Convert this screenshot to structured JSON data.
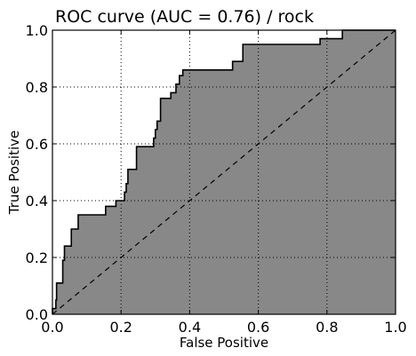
{
  "chart_data": {
    "type": "area",
    "title": "ROC curve (AUC = 0.76) / rock",
    "xlabel": "False Positive",
    "ylabel": "True Positive",
    "xlim": [
      0.0,
      1.0
    ],
    "ylim": [
      0.0,
      1.0
    ],
    "xticks": [
      "0.0",
      "0.2",
      "0.4",
      "0.6",
      "0.8",
      "1.0"
    ],
    "yticks": [
      "0.0",
      "0.2",
      "0.4",
      "0.6",
      "0.8",
      "1.0"
    ],
    "grid": true,
    "fill_color": "#888888",
    "series": [
      {
        "values": [
          [
            0.0,
            0.0
          ],
          [
            0.0,
            0.02
          ],
          [
            0.01,
            0.02
          ],
          [
            0.01,
            0.05
          ],
          [
            0.012,
            0.05
          ],
          [
            0.012,
            0.11
          ],
          [
            0.03,
            0.11
          ],
          [
            0.03,
            0.19
          ],
          [
            0.035,
            0.19
          ],
          [
            0.035,
            0.24
          ],
          [
            0.055,
            0.24
          ],
          [
            0.055,
            0.3
          ],
          [
            0.075,
            0.3
          ],
          [
            0.075,
            0.35
          ],
          [
            0.155,
            0.35
          ],
          [
            0.155,
            0.38
          ],
          [
            0.185,
            0.38
          ],
          [
            0.185,
            0.4
          ],
          [
            0.21,
            0.4
          ],
          [
            0.21,
            0.43
          ],
          [
            0.215,
            0.43
          ],
          [
            0.215,
            0.46
          ],
          [
            0.22,
            0.46
          ],
          [
            0.22,
            0.51
          ],
          [
            0.245,
            0.51
          ],
          [
            0.245,
            0.59
          ],
          [
            0.295,
            0.59
          ],
          [
            0.295,
            0.62
          ],
          [
            0.3,
            0.62
          ],
          [
            0.3,
            0.65
          ],
          [
            0.305,
            0.65
          ],
          [
            0.305,
            0.68
          ],
          [
            0.315,
            0.68
          ],
          [
            0.315,
            0.76
          ],
          [
            0.345,
            0.76
          ],
          [
            0.345,
            0.78
          ],
          [
            0.36,
            0.78
          ],
          [
            0.36,
            0.81
          ],
          [
            0.37,
            0.81
          ],
          [
            0.37,
            0.84
          ],
          [
            0.38,
            0.84
          ],
          [
            0.38,
            0.86
          ],
          [
            0.525,
            0.86
          ],
          [
            0.525,
            0.89
          ],
          [
            0.555,
            0.89
          ],
          [
            0.555,
            0.95
          ],
          [
            0.78,
            0.95
          ],
          [
            0.78,
            0.97
          ],
          [
            0.845,
            0.97
          ],
          [
            0.845,
            1.0
          ],
          [
            1.0,
            1.0
          ]
        ]
      }
    ],
    "reference_line": [
      [
        0.0,
        0.0
      ],
      [
        1.0,
        1.0
      ]
    ]
  }
}
